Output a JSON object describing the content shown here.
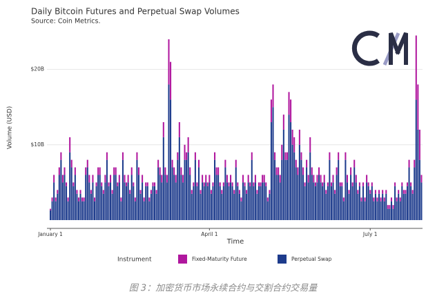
{
  "chart_data": {
    "type": "stacked_bar",
    "title": "Daily Bitcoin Futures and Perpetual Swap Volumes",
    "subtitle": "Source: Coin Metrics.",
    "x_label": "Time",
    "y_label": "Volume (USD)",
    "legend_title": "Instrument",
    "grid": true,
    "categories": [
      "January 1",
      null,
      null,
      null,
      null,
      null,
      null,
      null,
      null,
      null,
      null,
      null,
      null,
      null,
      null,
      null,
      null,
      null,
      null,
      null,
      null,
      null,
      null,
      null,
      null,
      null,
      null,
      null,
      null,
      null,
      null,
      null,
      null,
      null,
      null,
      null,
      null,
      null,
      null,
      null,
      null,
      null,
      null,
      null,
      null,
      null,
      null,
      null,
      null,
      null,
      null,
      null,
      null,
      null,
      null,
      null,
      null,
      null,
      null,
      null,
      null,
      null,
      null,
      null,
      null,
      null,
      null,
      null,
      null,
      null,
      null,
      null,
      null,
      null,
      null,
      null,
      null,
      null,
      null,
      null,
      null,
      null,
      null,
      null,
      null,
      null,
      null,
      null,
      null,
      null,
      "April 1",
      null,
      null,
      null,
      null,
      null,
      null,
      null,
      null,
      null,
      null,
      null,
      null,
      null,
      null,
      null,
      null,
      null,
      null,
      null,
      null,
      null,
      null,
      null,
      null,
      null,
      null,
      null,
      null,
      null,
      null,
      null,
      null,
      null,
      null,
      null,
      null,
      null,
      null,
      null,
      null,
      null,
      null,
      null,
      null,
      null,
      null,
      null,
      null,
      null,
      null,
      null,
      null,
      null,
      null,
      null,
      null,
      null,
      null,
      null,
      null,
      null,
      null,
      null,
      null,
      null,
      null,
      null,
      null,
      null,
      null,
      null,
      null,
      null,
      null,
      null,
      null,
      null,
      null,
      null,
      null,
      null,
      null,
      null,
      null,
      null,
      null,
      null,
      null,
      null,
      null,
      "July 1",
      null,
      null,
      null,
      null,
      null,
      null,
      null,
      null,
      null,
      null,
      null,
      null,
      null,
      null,
      null,
      null,
      null,
      null,
      null,
      null,
      null,
      null,
      null,
      null,
      null,
      null,
      null,
      null,
      null
    ],
    "ylim": [
      0,
      25000000000.0
    ],
    "yticks": [
      {
        "value": 10000000000.0,
        "label": "$10B"
      },
      {
        "value": 20000000000.0,
        "label": "$20B"
      }
    ],
    "series": [
      {
        "name": "Perpetual Swap",
        "color": "#1d3b8c",
        "values": [
          1300000000.0,
          2500000000.0,
          5000000000.0,
          2500000000.0,
          3500000000.0,
          6000000000.0,
          8000000000.0,
          5000000000.0,
          6000000000.0,
          4500000000.0,
          2500000000.0,
          9000000000.0,
          7000000000.0,
          4500000000.0,
          6000000000.0,
          3500000000.0,
          2500000000.0,
          3500000000.0,
          2500000000.0,
          2500000000.0,
          6000000000.0,
          7000000000.0,
          5000000000.0,
          3500000000.0,
          5000000000.0,
          2500000000.0,
          4500000000.0,
          6000000000.0,
          6000000000.0,
          4500000000.0,
          3500000000.0,
          5000000000.0,
          8000000000.0,
          4500000000.0,
          5000000000.0,
          3500000000.0,
          6000000000.0,
          6000000000.0,
          4500000000.0,
          5000000000.0,
          2500000000.0,
          8000000000.0,
          5000000000.0,
          4500000000.0,
          5000000000.0,
          3500000000.0,
          6000000000.0,
          4500000000.0,
          2500000000.0,
          8000000000.0,
          6000000000.0,
          3500000000.0,
          5000000000.0,
          2500000000.0,
          4500000000.0,
          4500000000.0,
          2500000000.0,
          3500000000.0,
          4500000000.0,
          4500000000.0,
          3500000000.0,
          7000000000.0,
          6000000000.0,
          5000000000.0,
          11000000000.0,
          6000000000.0,
          5000000000.0,
          18000000000.0,
          16000000000.0,
          7000000000.0,
          6000000000.0,
          5000000000.0,
          8000000000.0,
          11000000000.0,
          6000000000.0,
          5000000000.0,
          8000000000.0,
          8000000000.0,
          9000000000.0,
          6000000000.0,
          3500000000.0,
          4500000000.0,
          8000000000.0,
          4500000000.0,
          7000000000.0,
          3500000000.0,
          5000000000.0,
          4500000000.0,
          5000000000.0,
          4500000000.0,
          5000000000.0,
          3500000000.0,
          4500000000.0,
          8000000000.0,
          6000000000.0,
          6000000000.0,
          4500000000.0,
          3500000000.0,
          4500000000.0,
          7000000000.0,
          5000000000.0,
          4500000000.0,
          5000000000.0,
          4500000000.0,
          3500000000.0,
          7000000000.0,
          4500000000.0,
          3500000000.0,
          2500000000.0,
          5000000000.0,
          4500000000.0,
          3500000000.0,
          5000000000.0,
          4500000000.0,
          8000000000.0,
          4500000000.0,
          5000000000.0,
          3500000000.0,
          4500000000.0,
          4500000000.0,
          5000000000.0,
          5000000000.0,
          4500000000.0,
          2500000000.0,
          3500000000.0,
          13000000000.0,
          15000000000.0,
          8000000000.0,
          6000000000.0,
          6000000000.0,
          5000000000.0,
          8000000000.0,
          12000000000.0,
          8000000000.0,
          8000000000.0,
          14000000000.0,
          13000000000.0,
          10000000000.0,
          9000000000.0,
          7000000000.0,
          6000000000.0,
          10000000000.0,
          8000000000.0,
          6000000000.0,
          4500000000.0,
          7000000000.0,
          5000000000.0,
          9000000000.0,
          6000000000.0,
          5000000000.0,
          4500000000.0,
          5000000000.0,
          6000000000.0,
          5000000000.0,
          4500000000.0,
          5000000000.0,
          3500000000.0,
          4500000000.0,
          8000000000.0,
          4500000000.0,
          5000000000.0,
          3500000000.0,
          6000000000.0,
          8000000000.0,
          4500000000.0,
          4500000000.0,
          2500000000.0,
          8000000000.0,
          5000000000.0,
          3500000000.0,
          6000000000.0,
          4500000000.0,
          7000000000.0,
          5000000000.0,
          3500000000.0,
          4500000000.0,
          2500000000.0,
          4500000000.0,
          2500000000.0,
          5000000000.0,
          4500000000.0,
          3500000000.0,
          4500000000.0,
          2500000000.0,
          3500000000.0,
          2500000000.0,
          3500000000.0,
          2500000000.0,
          3500000000.0,
          2500000000.0,
          3500000000.0,
          1500000000.0,
          1500000000.0,
          2500000000.0,
          1500000000.0,
          4500000000.0,
          2500000000.0,
          3500000000.0,
          2500000000.0,
          4500000000.0,
          3500000000.0,
          3500000000.0,
          4500000000.0,
          7000000000.0,
          4500000000.0,
          3500000000.0,
          7000000000.0,
          16000000000.0,
          12000000000.0,
          8000000000.0,
          5000000000.0
        ]
      },
      {
        "name": "Fixed-Maturity Future",
        "color": "#b0179e",
        "values": [
          200000000.0,
          500000000.0,
          1000000000.0,
          500000000.0,
          500000000.0,
          1000000000.0,
          1000000000.0,
          1000000000.0,
          1000000000.0,
          500000000.0,
          500000000.0,
          2000000000.0,
          1000000000.0,
          500000000.0,
          1000000000.0,
          500000000.0,
          500000000.0,
          500000000.0,
          500000000.0,
          500000000.0,
          1000000000.0,
          1000000000.0,
          1000000000.0,
          500000000.0,
          1000000000.0,
          500000000.0,
          500000000.0,
          1000000000.0,
          1000000000.0,
          500000000.0,
          500000000.0,
          1000000000.0,
          1000000000.0,
          500000000.0,
          1000000000.0,
          500000000.0,
          1000000000.0,
          1000000000.0,
          500000000.0,
          1000000000.0,
          500000000.0,
          1000000000.0,
          1000000000.0,
          500000000.0,
          1000000000.0,
          500000000.0,
          1000000000.0,
          500000000.0,
          500000000.0,
          1000000000.0,
          1000000000.0,
          500000000.0,
          1000000000.0,
          500000000.0,
          500000000.0,
          500000000.0,
          500000000.0,
          500000000.0,
          500000000.0,
          500000000.0,
          500000000.0,
          1000000000.0,
          1000000000.0,
          1000000000.0,
          2000000000.0,
          1000000000.0,
          1000000000.0,
          6000000000.0,
          5000000000.0,
          1000000000.0,
          1000000000.0,
          1000000000.0,
          1000000000.0,
          2000000000.0,
          1000000000.0,
          1000000000.0,
          2000000000.0,
          1000000000.0,
          2000000000.0,
          1000000000.0,
          500000000.0,
          500000000.0,
          1000000000.0,
          500000000.0,
          1000000000.0,
          500000000.0,
          1000000000.0,
          500000000.0,
          1000000000.0,
          500000000.0,
          1000000000.0,
          500000000.0,
          500000000.0,
          1000000000.0,
          1000000000.0,
          1000000000.0,
          500000000.0,
          500000000.0,
          500000000.0,
          1000000000.0,
          1000000000.0,
          500000000.0,
          1000000000.0,
          500000000.0,
          500000000.0,
          1000000000.0,
          500000000.0,
          500000000.0,
          500000000.0,
          1000000000.0,
          500000000.0,
          500000000.0,
          1000000000.0,
          500000000.0,
          1000000000.0,
          500000000.0,
          1000000000.0,
          500000000.0,
          500000000.0,
          500000000.0,
          1000000000.0,
          1000000000.0,
          500000000.0,
          500000000.0,
          500000000.0,
          3000000000.0,
          3000000000.0,
          1000000000.0,
          1000000000.0,
          1000000000.0,
          1000000000.0,
          2000000000.0,
          2000000000.0,
          1000000000.0,
          1000000000.0,
          3000000000.0,
          3000000000.0,
          2000000000.0,
          2000000000.0,
          1000000000.0,
          1000000000.0,
          2000000000.0,
          1000000000.0,
          1000000000.0,
          500000000.0,
          1000000000.0,
          1000000000.0,
          2000000000.0,
          1000000000.0,
          1000000000.0,
          500000000.0,
          1000000000.0,
          1000000000.0,
          1000000000.0,
          500000000.0,
          1000000000.0,
          500000000.0,
          500000000.0,
          1000000000.0,
          500000000.0,
          1000000000.0,
          500000000.0,
          1000000000.0,
          1000000000.0,
          500000000.0,
          500000000.0,
          500000000.0,
          1000000000.0,
          1000000000.0,
          500000000.0,
          1000000000.0,
          500000000.0,
          1000000000.0,
          1000000000.0,
          500000000.0,
          500000000.0,
          500000000.0,
          500000000.0,
          500000000.0,
          1000000000.0,
          500000000.0,
          500000000.0,
          500000000.0,
          500000000.0,
          500000000.0,
          500000000.0,
          500000000.0,
          500000000.0,
          500000000.0,
          500000000.0,
          500000000.0,
          500000000.0,
          500000000.0,
          500000000.0,
          500000000.0,
          500000000.0,
          500000000.0,
          500000000.0,
          500000000.0,
          500000000.0,
          500000000.0,
          500000000.0,
          500000000.0,
          1000000000.0,
          500000000.0,
          500000000.0,
          1000000000.0,
          8500000000.0,
          6000000000.0,
          4000000000.0,
          1000000000.0
        ]
      }
    ]
  },
  "caption": "图 3：加密货币市场永续合约与交割合约交易量"
}
